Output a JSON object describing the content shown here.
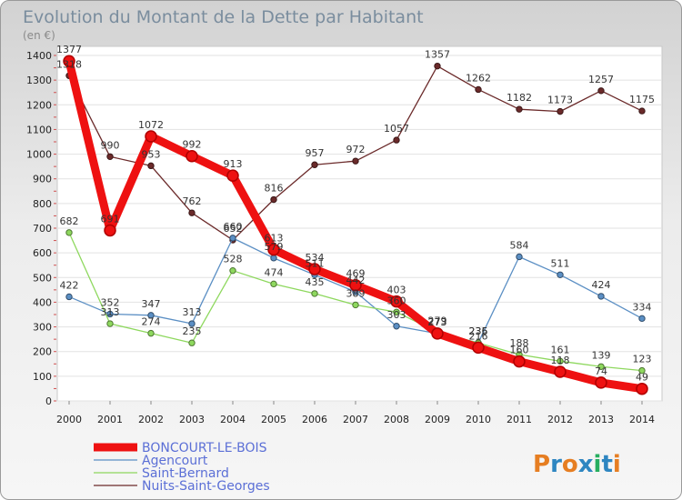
{
  "chart_data": {
    "type": "line",
    "title": "Evolution du Montant de la Dette par Habitant",
    "subtitle": "(en €)",
    "x": [
      "2000",
      "2001",
      "2002",
      "2003",
      "2004",
      "2005",
      "2006",
      "2007",
      "2008",
      "2009",
      "2010",
      "2011",
      "2012",
      "2013",
      "2014"
    ],
    "ylim": [
      0,
      1400
    ],
    "yticks": [
      0,
      100,
      200,
      300,
      400,
      500,
      600,
      700,
      800,
      900,
      1000,
      1100,
      1200,
      1300,
      1400
    ],
    "grid": true,
    "legend_position": "bottom-left",
    "series": [
      {
        "name": "Nuits-Saint-Georges",
        "color": "#6b2a2a",
        "values": [
          1318,
          990,
          953,
          762,
          652,
          816,
          957,
          972,
          1057,
          1357,
          1262,
          1182,
          1173,
          1257,
          1175
        ],
        "labels": [
          "1318",
          "990",
          "953",
          "762",
          "652",
          "816",
          "957",
          "972",
          "1057",
          "1357",
          "1262",
          "1182",
          "1173",
          "1257",
          "1175"
        ]
      },
      {
        "name": "Agencourt",
        "color": "#5b8fc4",
        "values": [
          422,
          352,
          347,
          313,
          660,
          579,
          511,
          442,
          303,
          273,
          236,
          584,
          511,
          424,
          334
        ],
        "labels": [
          "422",
          "352",
          "347",
          "313",
          "660",
          "579",
          "511",
          "442",
          "303",
          "273",
          "236",
          "584",
          "511",
          "424",
          "334"
        ]
      },
      {
        "name": "Saint-Bernard",
        "color": "#8ed85e",
        "values": [
          682,
          313,
          274,
          235,
          528,
          474,
          435,
          389,
          360,
          279,
          235,
          188,
          161,
          139,
          123
        ],
        "labels": [
          "682",
          "313",
          "274",
          "235",
          "528",
          "474",
          "435",
          "389",
          "360",
          "279",
          "235",
          "188",
          "161",
          "139",
          "123"
        ]
      },
      {
        "name": "BONCOURT-LE-BOIS",
        "color": "#ee1111",
        "values": [
          1377,
          691,
          1072,
          992,
          913,
          613,
          534,
          469,
          403,
          273,
          216,
          160,
          118,
          74,
          49
        ],
        "labels": [
          "1377",
          "691",
          "1072",
          "992",
          "913",
          "613",
          "534",
          "469",
          "403",
          "273",
          "216",
          "160",
          "118",
          "74",
          "49"
        ]
      }
    ],
    "legend": [
      "BONCOURT-LE-BOIS",
      "Agencourt",
      "Saint-Bernard",
      "Nuits-Saint-Georges"
    ]
  },
  "brand": {
    "logo_text": "Proxiti",
    "colors": [
      "#e67e22",
      "#2e86c1",
      "#e67e22",
      "#2e86c1",
      "#27ae60",
      "#2e86c1",
      "#e67e22"
    ]
  },
  "legend_colors": {
    "text": "#5b6fd6"
  }
}
